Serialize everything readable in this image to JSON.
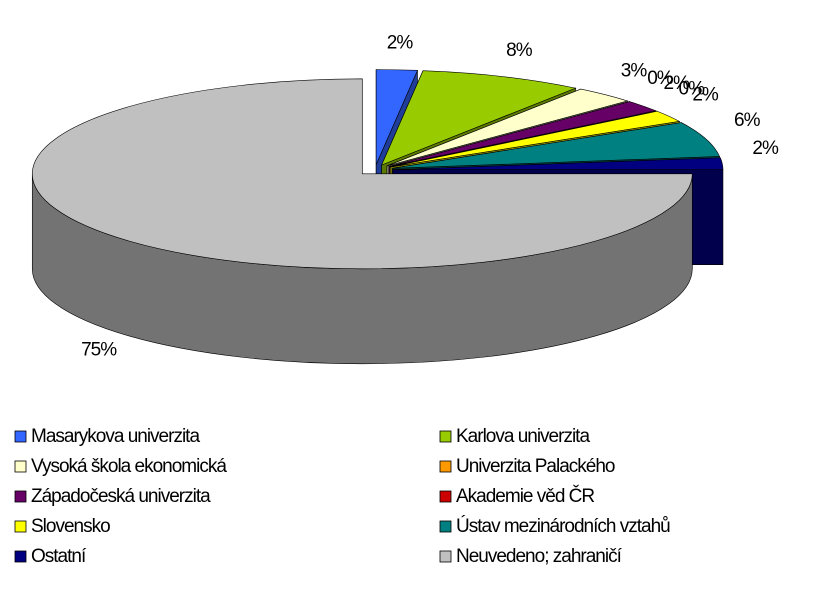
{
  "chart_data": {
    "type": "pie",
    "categories": [
      "Masarykova univerzita",
      "Karlova univerzita",
      "Vysoká škola ekonomická",
      "Univerzita Palackého",
      "Západočeská univerzita",
      "Akademie věd ČR",
      "Slovensko",
      "Ústav mezinárodních vztahů",
      "Ostatní",
      "Neuvedeno; zahraničí"
    ],
    "values": [
      2,
      8,
      3,
      0,
      2,
      0,
      2,
      6,
      2,
      75
    ],
    "value_labels": [
      "2%",
      "8%",
      "3%",
      "0%",
      "2%",
      "0%",
      "2%",
      "6%",
      "2%",
      "75%"
    ],
    "colors": [
      "#3366ff",
      "#99cc00",
      "#ffffcc",
      "#ff9900",
      "#660066",
      "#cc0000",
      "#ffff00",
      "#008080",
      "#000080",
      "#c0c0c0"
    ],
    "legend": "bottom"
  }
}
